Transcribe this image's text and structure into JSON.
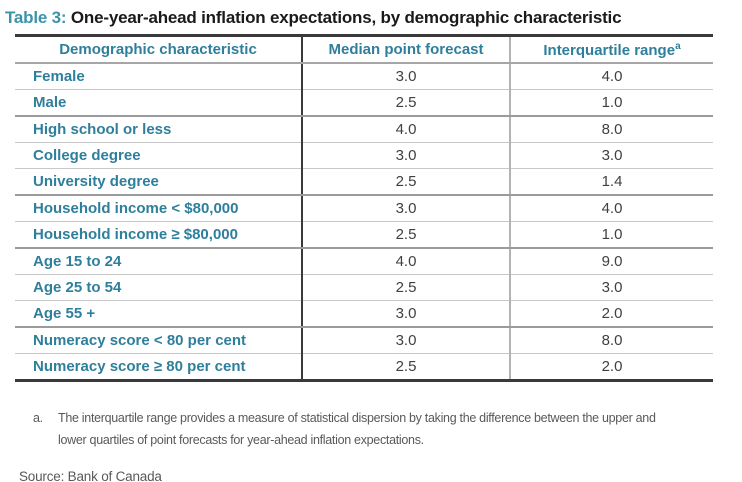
{
  "title": {
    "prefix": "Table 3:",
    "text": " One-year-ahead inflation expectations, by demographic characteristic"
  },
  "table": {
    "headers": {
      "characteristic": "Demographic characteristic",
      "median": "Median point forecast",
      "iqr": "Interquartile range",
      "iqr_superscript": "a"
    },
    "rows": [
      {
        "label": "Female",
        "median": "3.0",
        "iqr": "4.0"
      },
      {
        "label": "Male",
        "median": "2.5",
        "iqr": "1.0"
      },
      {
        "label": "High school or less",
        "median": "4.0",
        "iqr": "8.0"
      },
      {
        "label": "College degree",
        "median": "3.0",
        "iqr": "3.0"
      },
      {
        "label": "University degree",
        "median": "2.5",
        "iqr": "1.4"
      },
      {
        "label": "Household income < $80,000",
        "median": "3.0",
        "iqr": "4.0"
      },
      {
        "label": "Household income ≥ $80,000",
        "median": "2.5",
        "iqr": "1.0"
      },
      {
        "label": "Age 15 to 24",
        "median": "4.0",
        "iqr": "9.0"
      },
      {
        "label": "Age 25 to 54",
        "median": "2.5",
        "iqr": "3.0"
      },
      {
        "label": "Age 55 +",
        "median": "3.0",
        "iqr": "2.0"
      },
      {
        "label": "Numeracy score < 80 per cent",
        "median": "3.0",
        "iqr": "8.0"
      },
      {
        "label": "Numeracy score ≥ 80 per cent",
        "median": "2.5",
        "iqr": "2.0"
      }
    ]
  },
  "footnote": {
    "marker": "a.",
    "text": "The interquartile range provides a measure of statistical dispersion by taking the difference between the upper and lower quartiles of point forecasts for year-ahead inflation expectations."
  },
  "source": "Source: Bank of Canada",
  "colors": {
    "accent_teal": "#2E7F9B",
    "title_teal": "#3C93A9",
    "dark_border": "#3A3A3A",
    "light_rule": "#C8C8C8",
    "group_rule": "#9B9B9B",
    "value_text": "#404040",
    "note_text": "#595959"
  }
}
